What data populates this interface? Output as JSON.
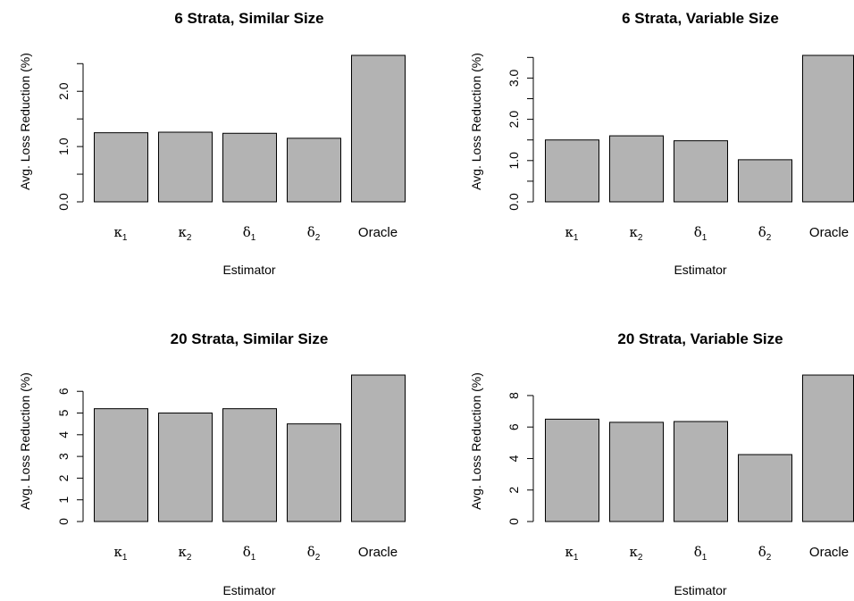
{
  "colors": {
    "bar_fill": "#b3b3b3",
    "bar_stroke": "#000000",
    "axis": "#000000"
  },
  "chart_data": [
    {
      "type": "bar",
      "title": "6 Strata, Similar Size",
      "xlabel": "Estimator",
      "ylabel": "Avg. Loss Reduction (%)",
      "categories": [
        {
          "base": "κ",
          "sub": "1"
        },
        {
          "base": "κ",
          "sub": "2"
        },
        {
          "base": "δ",
          "sub": "1"
        },
        {
          "base": "δ",
          "sub": "2"
        },
        {
          "base": "Oracle",
          "sub": ""
        }
      ],
      "values": [
        1.25,
        1.26,
        1.24,
        1.15,
        2.65
      ],
      "ylim": [
        0,
        2.65
      ],
      "yticks": [
        0.0,
        0.5,
        1.0,
        1.5,
        2.0,
        2.5
      ],
      "ytick_labels": [
        "0.0",
        "",
        "1.0",
        "",
        "2.0",
        ""
      ]
    },
    {
      "type": "bar",
      "title": "6 Strata, Variable Size",
      "xlabel": "Estimator",
      "ylabel": "Avg. Loss Reduction (%)",
      "categories": [
        {
          "base": "κ",
          "sub": "1"
        },
        {
          "base": "κ",
          "sub": "2"
        },
        {
          "base": "δ",
          "sub": "1"
        },
        {
          "base": "δ",
          "sub": "2"
        },
        {
          "base": "Oracle",
          "sub": ""
        }
      ],
      "values": [
        1.5,
        1.6,
        1.48,
        1.02,
        3.55
      ],
      "ylim": [
        0,
        3.55
      ],
      "yticks": [
        0.0,
        0.5,
        1.0,
        1.5,
        2.0,
        2.5,
        3.0,
        3.5
      ],
      "ytick_labels": [
        "0.0",
        "",
        "1.0",
        "",
        "2.0",
        "",
        "3.0",
        ""
      ]
    },
    {
      "type": "bar",
      "title": "20 Strata, Similar Size",
      "xlabel": "Estimator",
      "ylabel": "Avg. Loss Reduction (%)",
      "categories": [
        {
          "base": "κ",
          "sub": "1"
        },
        {
          "base": "κ",
          "sub": "2"
        },
        {
          "base": "δ",
          "sub": "1"
        },
        {
          "base": "δ",
          "sub": "2"
        },
        {
          "base": "Oracle",
          "sub": ""
        }
      ],
      "values": [
        5.2,
        5.0,
        5.2,
        4.5,
        6.75
      ],
      "ylim": [
        0,
        6.75
      ],
      "yticks": [
        0,
        1,
        2,
        3,
        4,
        5,
        6
      ],
      "ytick_labels": [
        "0",
        "1",
        "2",
        "3",
        "4",
        "5",
        "6"
      ]
    },
    {
      "type": "bar",
      "title": "20 Strata, Variable Size",
      "xlabel": "Estimator",
      "ylabel": "Avg. Loss Reduction (%)",
      "categories": [
        {
          "base": "κ",
          "sub": "1"
        },
        {
          "base": "κ",
          "sub": "2"
        },
        {
          "base": "δ",
          "sub": "1"
        },
        {
          "base": "δ",
          "sub": "2"
        },
        {
          "base": "Oracle",
          "sub": ""
        }
      ],
      "values": [
        6.5,
        6.3,
        6.35,
        4.25,
        9.3
      ],
      "ylim": [
        0,
        9.3
      ],
      "yticks": [
        0,
        2,
        4,
        6,
        8
      ],
      "ytick_labels": [
        "0",
        "2",
        "4",
        "6",
        "8"
      ]
    }
  ]
}
